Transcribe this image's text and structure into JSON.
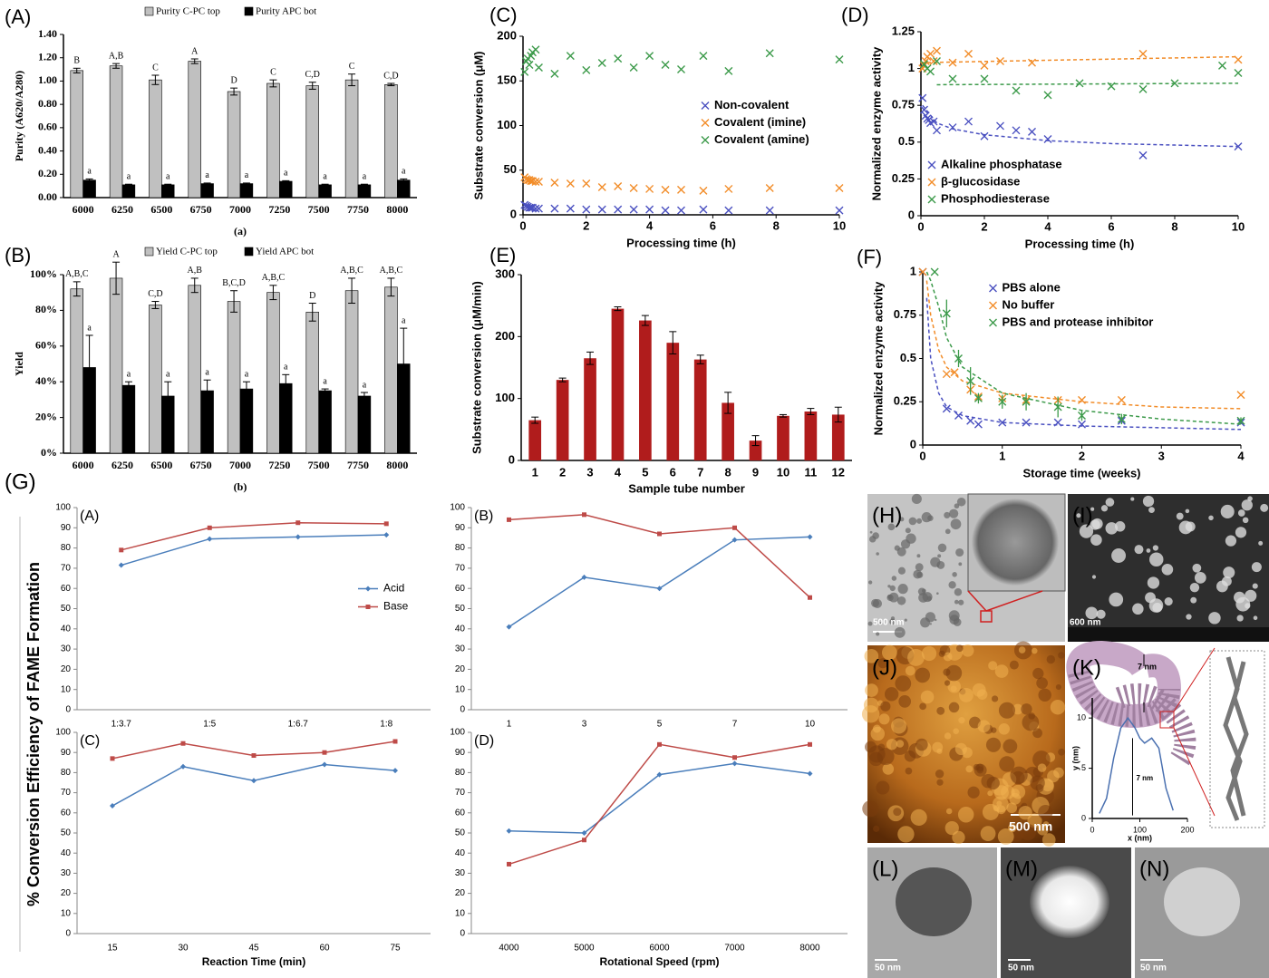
{
  "chart_data": [
    {
      "type": "bar",
      "panel": "(A)",
      "caption": "(a)",
      "ylabel": "Purity (A620/A280)",
      "categories": [
        "6000",
        "6250",
        "6500",
        "6750",
        "7000",
        "7250",
        "7500",
        "7750",
        "8000"
      ],
      "series": [
        {
          "name": "Purity C-PC top",
          "color": "#c0c0c0",
          "values": [
            1.09,
            1.13,
            1.01,
            1.17,
            0.91,
            0.98,
            0.96,
            1.01,
            0.97
          ],
          "errors": [
            0.02,
            0.02,
            0.04,
            0.02,
            0.03,
            0.03,
            0.03,
            0.05,
            0.01
          ],
          "annotations": [
            "B",
            "A,B",
            "C",
            "A",
            "D",
            "C",
            "C,D",
            "C",
            "C,D"
          ]
        },
        {
          "name": "Purity APC bot",
          "color": "#000000",
          "values": [
            0.15,
            0.11,
            0.11,
            0.12,
            0.12,
            0.14,
            0.11,
            0.11,
            0.15
          ],
          "errors": [
            0.01,
            0.005,
            0.005,
            0.005,
            0.005,
            0.005,
            0.005,
            0.005,
            0.01
          ],
          "annotations": [
            "a",
            "a",
            "a",
            "a",
            "a",
            "a",
            "a",
            "a",
            "a"
          ]
        }
      ],
      "ylim": [
        0,
        1.4
      ],
      "yticks": [
        {
          "value": 0,
          "label": "0.00"
        },
        {
          "value": 0.2,
          "label": "0.20"
        },
        {
          "value": 0.4,
          "label": "0.40"
        },
        {
          "value": 0.6,
          "label": "0.60"
        },
        {
          "value": 0.8,
          "label": "0.80"
        },
        {
          "value": 1.0,
          "label": "1.00"
        },
        {
          "value": 1.2,
          "label": "1.20"
        },
        {
          "value": 1.4,
          "label": "1.40"
        }
      ]
    },
    {
      "type": "bar",
      "panel": "(B)",
      "caption": "(b)",
      "ylabel": "Yield",
      "categories": [
        "6000",
        "6250",
        "6500",
        "6750",
        "7000",
        "7250",
        "7500",
        "7750",
        "8000"
      ],
      "series": [
        {
          "name": "Yield C-PC top",
          "color": "#c0c0c0",
          "values": [
            92,
            98,
            83,
            94,
            85,
            90,
            79,
            91,
            93
          ],
          "errors": [
            4,
            9,
            2,
            4,
            6,
            4,
            5,
            7,
            5
          ],
          "annotations": [
            "A,B,C",
            "A",
            "C,D",
            "A,B",
            "B,C,D",
            "A,B,C",
            "D",
            "A,B,C",
            "A,B,C"
          ]
        },
        {
          "name": "Yield APC bot",
          "color": "#000000",
          "values": [
            48,
            38,
            32,
            35,
            36,
            39,
            35,
            32,
            50
          ],
          "errors": [
            18,
            2,
            8,
            6,
            4,
            5,
            1,
            2,
            20
          ],
          "annotations": [
            "a",
            "a",
            "a",
            "a",
            "a",
            "a",
            "a",
            "a",
            "a"
          ]
        }
      ],
      "ylim": [
        0,
        100
      ],
      "yticks": [
        {
          "value": 0,
          "label": "0%"
        },
        {
          "value": 20,
          "label": "20%"
        },
        {
          "value": 40,
          "label": "40%"
        },
        {
          "value": 60,
          "label": "60%"
        },
        {
          "value": 80,
          "label": "80%"
        },
        {
          "value": 100,
          "label": "100%"
        }
      ]
    },
    {
      "type": "scatter",
      "panel": "(C)",
      "xlabel": "Processing time (h)",
      "ylabel": "Substrate conversion (μM)",
      "legend": "center right",
      "series": [
        {
          "name": "Non-covalent",
          "color": "#4a50c0",
          "x": [
            0.05,
            0.1,
            0.15,
            0.2,
            0.25,
            0.3,
            0.4,
            0.5,
            1,
            1.5,
            2,
            2.5,
            3,
            3.5,
            4,
            4.5,
            5,
            5.7,
            6.5,
            7.8,
            10
          ],
          "values": [
            11,
            10,
            9,
            8,
            8,
            8,
            7,
            7,
            7,
            7,
            6,
            6,
            6,
            6,
            6,
            5,
            5,
            6,
            5,
            5,
            5
          ]
        },
        {
          "name": "Covalent (imine)",
          "color": "#f28c28",
          "x": [
            0.05,
            0.1,
            0.15,
            0.2,
            0.25,
            0.3,
            0.4,
            0.5,
            1,
            1.5,
            2,
            2.5,
            3,
            3.5,
            4,
            4.5,
            5,
            5.7,
            6.5,
            7.8,
            10
          ],
          "values": [
            42,
            40,
            39,
            39,
            38,
            38,
            37,
            37,
            36,
            35,
            35,
            31,
            32,
            30,
            29,
            28,
            28,
            27,
            29,
            30,
            30
          ]
        },
        {
          "name": "Covalent (amine)",
          "color": "#3c9a4a",
          "x": [
            0.05,
            0.1,
            0.15,
            0.2,
            0.25,
            0.3,
            0.4,
            0.5,
            1,
            1.5,
            2,
            2.5,
            3,
            3.5,
            4,
            4.5,
            5,
            5.7,
            6.5,
            7.8,
            10
          ],
          "values": [
            160,
            172,
            175,
            168,
            178,
            182,
            185,
            165,
            158,
            178,
            162,
            170,
            175,
            165,
            178,
            168,
            163,
            178,
            161,
            181,
            174
          ]
        }
      ],
      "xlim": [
        0,
        10
      ],
      "xticks": [
        0,
        2,
        4,
        6,
        8,
        10
      ],
      "ylim": [
        0,
        200
      ],
      "yticks": [
        0,
        50,
        100,
        150,
        200
      ]
    },
    {
      "type": "scatter",
      "panel": "(D)",
      "xlabel": "Processing time (h)",
      "ylabel": "Normalized enzyme activity",
      "legend": "lower left",
      "series": [
        {
          "name": "Alkaline phosphatase",
          "color": "#4a50c0",
          "x": [
            0.05,
            0.1,
            0.15,
            0.2,
            0.25,
            0.3,
            0.4,
            0.5,
            1,
            1.5,
            2,
            2.5,
            3,
            3.5,
            4,
            7,
            10
          ],
          "values": [
            0.8,
            0.72,
            0.68,
            0.66,
            0.65,
            0.63,
            0.64,
            0.58,
            0.6,
            0.64,
            0.54,
            0.61,
            0.58,
            0.57,
            0.52,
            0.41,
            0.47
          ],
          "trend": {
            "x": [
              0.05,
              0.5,
              1,
              2,
              3,
              4,
              6,
              8,
              10
            ],
            "y": [
              0.75,
              0.63,
              0.59,
              0.55,
              0.53,
              0.51,
              0.49,
              0.48,
              0.47
            ]
          }
        },
        {
          "name": "β-glucosidase",
          "color": "#f28c28",
          "x": [
            0.05,
            0.1,
            0.15,
            0.2,
            0.3,
            0.4,
            0.5,
            1,
            1.5,
            2,
            2.5,
            3.5,
            7,
            10
          ],
          "values": [
            1.0,
            1.02,
            1.05,
            1.08,
            1.1,
            1.05,
            1.12,
            1.04,
            1.1,
            1.02,
            1.05,
            1.04,
            1.1,
            1.06
          ],
          "trend": {
            "x": [
              0,
              10
            ],
            "y": [
              1.04,
              1.08
            ]
          }
        },
        {
          "name": "Phosphodiesterase",
          "color": "#3c9a4a",
          "x": [
            0.1,
            0.2,
            0.3,
            0.5,
            1,
            2,
            3,
            4,
            5,
            6,
            7,
            8,
            9.5,
            10
          ],
          "values": [
            1.03,
            1.0,
            0.98,
            1.05,
            0.93,
            0.93,
            0.85,
            0.82,
            0.9,
            0.88,
            0.86,
            0.9,
            1.02,
            0.97
          ],
          "trend": {
            "x": [
              0.5,
              10
            ],
            "y": [
              0.89,
              0.9
            ]
          }
        }
      ],
      "xlim": [
        0,
        10
      ],
      "xticks": [
        0,
        2,
        4,
        6,
        8,
        10
      ],
      "ylim": [
        0,
        1.25
      ],
      "yticks": [
        0,
        0.25,
        0.5,
        0.75,
        1,
        1.25
      ]
    },
    {
      "type": "bar",
      "panel": "(E)",
      "xlabel": "Sample tube number",
      "ylabel": "Substrate conversion (μM/min)",
      "color": "#b01c1c",
      "categories": [
        "1",
        "2",
        "3",
        "4",
        "5",
        "6",
        "7",
        "8",
        "9",
        "10",
        "11",
        "12"
      ],
      "values": [
        65,
        130,
        165,
        245,
        226,
        190,
        163,
        93,
        32,
        72,
        79,
        74
      ],
      "errors": [
        5,
        3,
        10,
        3,
        8,
        18,
        7,
        17,
        8,
        2,
        5,
        12
      ],
      "ylim": [
        0,
        300
      ],
      "yticks": [
        0,
        100,
        200,
        300
      ]
    },
    {
      "type": "scatter",
      "panel": "(F)",
      "xlabel": "Storage time (weeks)",
      "ylabel": "Normalized enzyme activity",
      "legend": "upper center",
      "series": [
        {
          "name": "PBS alone",
          "color": "#4a50c0",
          "x": [
            0,
            0.3,
            0.45,
            0.6,
            0.7,
            1,
            1.3,
            1.7,
            2,
            2.5,
            4
          ],
          "values": [
            1,
            0.21,
            0.17,
            0.14,
            0.12,
            0.13,
            0.13,
            0.13,
            0.12,
            0.14,
            0.13
          ],
          "trend": {
            "x": [
              0.05,
              0.1,
              0.2,
              0.3,
              0.5,
              1,
              2,
              3,
              4
            ],
            "y": [
              0.85,
              0.5,
              0.3,
              0.22,
              0.17,
              0.13,
              0.11,
              0.1,
              0.09
            ]
          }
        },
        {
          "name": "No buffer",
          "color": "#f28c28",
          "x": [
            0,
            0.3,
            0.4,
            0.6,
            0.7,
            1,
            1.3,
            1.7,
            2,
            2.5,
            4
          ],
          "values": [
            1,
            0.41,
            0.42,
            0.32,
            0.28,
            0.27,
            0.26,
            0.26,
            0.26,
            0.26,
            0.29
          ],
          "trend": {
            "x": [
              0.05,
              0.1,
              0.2,
              0.3,
              0.5,
              1,
              2,
              3,
              4
            ],
            "y": [
              0.95,
              0.75,
              0.55,
              0.45,
              0.37,
              0.3,
              0.25,
              0.22,
              0.21
            ]
          }
        },
        {
          "name": "PBS and protease inhibitor",
          "color": "#3c9a4a",
          "x": [
            0.15,
            0.3,
            0.45,
            0.6,
            0.7,
            1,
            1.3,
            1.7,
            2,
            2.5,
            4
          ],
          "values": [
            1,
            0.76,
            0.5,
            0.37,
            0.27,
            0.25,
            0.25,
            0.22,
            0.17,
            0.15,
            0.14
          ],
          "errors": [
            0,
            0.08,
            0.05,
            0.08,
            0.03,
            0.04,
            0.05,
            0.06,
            0.03,
            0.03,
            0.02
          ],
          "trend": {
            "x": [
              0.05,
              0.1,
              0.2,
              0.3,
              0.5,
              1,
              2,
              3,
              4
            ],
            "y": [
              1.0,
              0.95,
              0.8,
              0.62,
              0.45,
              0.3,
              0.2,
              0.15,
              0.12
            ]
          }
        }
      ],
      "xlim": [
        0,
        4
      ],
      "xticks": [
        0,
        1,
        2,
        3,
        4
      ],
      "ylim": [
        0,
        1
      ],
      "yticks": [
        0,
        0.25,
        0.5,
        0.75,
        1
      ]
    },
    {
      "type": "line",
      "panel": "(A)",
      "legend": "center right",
      "categories": [
        "1:3.7",
        "1:5",
        "1:6.7",
        "1:8"
      ],
      "series": [
        {
          "name": "Acid",
          "color": "#4a7ebb",
          "marker": "diamond",
          "values": [
            71.5,
            84.5,
            85.5,
            86.5
          ]
        },
        {
          "name": "Base",
          "color": "#be4b48",
          "marker": "square",
          "values": [
            79,
            90,
            92.5,
            92
          ]
        }
      ],
      "ylim": [
        0,
        100
      ],
      "yticks": [
        0,
        10,
        20,
        30,
        40,
        50,
        60,
        70,
        80,
        90,
        100
      ]
    },
    {
      "type": "line",
      "panel": "(B)",
      "categories": [
        "1",
        "3",
        "5",
        "7",
        "10"
      ],
      "series": [
        {
          "color": "#4a7ebb",
          "marker": "diamond",
          "values": [
            41,
            65.5,
            60,
            84,
            85.5
          ]
        },
        {
          "color": "#be4b48",
          "marker": "square",
          "values": [
            94,
            96.5,
            87,
            90,
            55.5
          ]
        }
      ],
      "ylim": [
        0,
        100
      ],
      "yticks": [
        0,
        10,
        20,
        30,
        40,
        50,
        60,
        70,
        80,
        90,
        100
      ]
    },
    {
      "type": "line",
      "panel": "(C)",
      "xlabel": "Reaction Time (min)",
      "categories": [
        "15",
        "30",
        "45",
        "60",
        "75"
      ],
      "series": [
        {
          "color": "#4a7ebb",
          "marker": "diamond",
          "values": [
            63.5,
            83,
            76,
            84,
            81
          ]
        },
        {
          "color": "#be4b48",
          "marker": "square",
          "values": [
            87,
            94.5,
            88.5,
            90,
            95.5
          ]
        }
      ],
      "ylim": [
        0,
        100
      ],
      "yticks": [
        0,
        10,
        20,
        30,
        40,
        50,
        60,
        70,
        80,
        90,
        100
      ]
    },
    {
      "type": "line",
      "panel": "(D)",
      "xlabel": "Rotational Speed (rpm)",
      "categories": [
        "4000",
        "5000",
        "6000",
        "7000",
        "8000"
      ],
      "series": [
        {
          "color": "#4a7ebb",
          "marker": "diamond",
          "values": [
            51,
            50,
            79,
            84.5,
            79.5
          ]
        },
        {
          "color": "#be4b48",
          "marker": "square",
          "values": [
            34.5,
            46.5,
            94,
            87.5,
            94
          ]
        }
      ],
      "ylim": [
        0,
        100
      ],
      "yticks": [
        0,
        10,
        20,
        30,
        40,
        50,
        60,
        70,
        80,
        90,
        100
      ]
    },
    {
      "type": "line",
      "xlabel": "x (nm)",
      "ylabel": "y (nm)",
      "annotation": "7 nm",
      "x": [
        15,
        30,
        45,
        60,
        75,
        90,
        100,
        110,
        125,
        140,
        155,
        170
      ],
      "series": [
        {
          "color": "#4a70b0",
          "values": [
            0.5,
            2,
            6,
            9,
            10,
            9,
            8,
            7.5,
            8,
            7,
            3,
            0.8
          ]
        }
      ],
      "xlim": [
        0,
        200
      ],
      "xticks": [
        0,
        100,
        200
      ],
      "ylim": [
        0,
        12
      ],
      "yticks": [
        0,
        5,
        10
      ]
    }
  ],
  "figure": {
    "label": "(G)",
    "ylabel": "% Conversion Efficiency of FAME Formation"
  },
  "images": {
    "h": {
      "label": "(H)",
      "scale": "500 nm"
    },
    "i": {
      "label": "(I)",
      "scale": "600 nm"
    },
    "j": {
      "label": "(J)",
      "scale": "500 nm"
    },
    "k": {
      "label": "(K)",
      "width": "7 nm"
    },
    "l": {
      "label": "(L)",
      "scale": "50 nm"
    },
    "m": {
      "label": "(M)",
      "scale": "50 nm"
    },
    "n": {
      "label": "(N)",
      "scale": "50 nm"
    }
  }
}
